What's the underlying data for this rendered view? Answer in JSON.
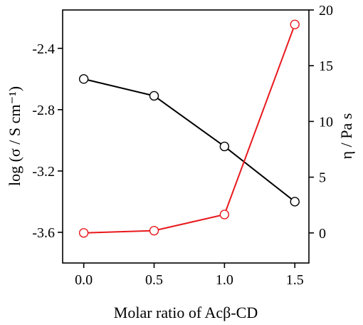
{
  "chart_data": {
    "type": "line",
    "xlabel": "Molar ratio of Acβ-CD",
    "ylabel_left": "log (σ / S cm⁻¹)",
    "ylabel_right": "η / Pa s",
    "xlim": [
      -0.15,
      1.6
    ],
    "ylim_left": [
      -3.8,
      -2.15
    ],
    "ylim_right": [
      -2.7,
      20
    ],
    "xticks": [
      "0.0",
      "0.5",
      "1.0",
      "1.5"
    ],
    "xtick_values": [
      0.0,
      0.5,
      1.0,
      1.5
    ],
    "yticks_left": [
      "-3.6",
      "-3.2",
      "-2.8",
      "-2.4"
    ],
    "ytick_values_left": [
      -3.6,
      -3.2,
      -2.8,
      -2.4
    ],
    "yticks_right": [
      "0",
      "5",
      "10",
      "15",
      "20"
    ],
    "ytick_values_right": [
      0,
      5,
      10,
      15,
      20
    ],
    "grid": false,
    "series": [
      {
        "axis": "left",
        "color": "#000000",
        "marker": "open-circle",
        "x": [
          0.0,
          0.5,
          1.0,
          1.5
        ],
        "values": [
          -2.6,
          -2.71,
          -3.04,
          -3.4
        ]
      },
      {
        "axis": "right",
        "color": "#e8191d",
        "marker": "open-circle",
        "x": [
          0.0,
          0.5,
          1.0,
          1.5
        ],
        "values": [
          0.0,
          0.2,
          1.65,
          18.7
        ]
      }
    ]
  }
}
